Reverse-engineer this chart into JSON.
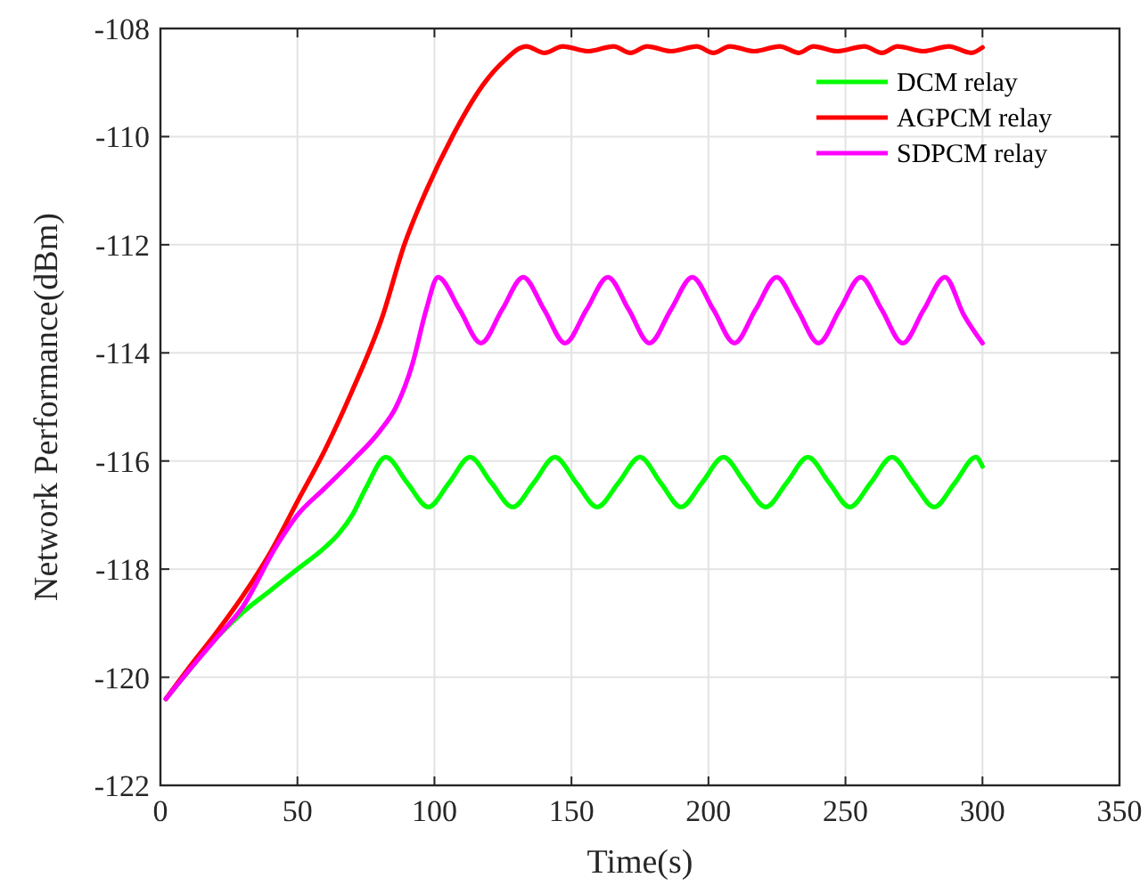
{
  "chart_data": {
    "type": "line",
    "xlabel": "Time(s)",
    "ylabel": "Network Performance(dBm)",
    "xlim": [
      0,
      350
    ],
    "xticks": [
      0,
      50,
      100,
      150,
      200,
      250,
      300,
      350
    ],
    "ylim": [
      -122,
      -108
    ],
    "yticks": [
      -122,
      -120,
      -118,
      -116,
      -114,
      -112,
      -110,
      -108
    ],
    "grid": true,
    "legend": "top right",
    "line_style": "solid",
    "marker": "none",
    "series": [
      {
        "name": "DCM relay",
        "color": "#00ff00",
        "x": [
          2,
          10,
          20,
          30,
          40,
          50,
          60,
          65,
          70,
          75,
          82.3,
          90,
          97.8,
          105.4,
          113,
          120.7,
          128.6,
          136.3,
          144,
          151.7,
          159.4,
          167.2,
          175,
          182.5,
          190,
          197.7,
          205.5,
          213.2,
          220.9,
          228.6,
          236.3,
          244,
          251.6,
          259.3,
          267,
          274.7,
          282.4,
          290,
          297.6,
          300
        ],
        "values": [
          -120.4,
          -119.9,
          -119.3,
          -118.8,
          -118.4,
          -118.0,
          -117.6,
          -117.35,
          -117.0,
          -116.5,
          -115.93,
          -116.4,
          -116.85,
          -116.4,
          -115.93,
          -116.4,
          -116.85,
          -116.4,
          -115.93,
          -116.4,
          -116.85,
          -116.4,
          -115.93,
          -116.4,
          -116.85,
          -116.4,
          -115.93,
          -116.4,
          -116.85,
          -116.4,
          -115.93,
          -116.4,
          -116.85,
          -116.4,
          -115.93,
          -116.4,
          -116.85,
          -116.4,
          -115.93,
          -116.1
        ]
      },
      {
        "name": "AGPCM relay",
        "color": "#ff0000",
        "x": [
          2,
          10,
          20,
          30,
          40,
          50,
          60,
          70,
          81,
          89,
          97,
          106.5,
          118.8,
          125.4,
          133.5,
          140.2,
          146.8,
          156.1,
          165.4,
          171.5,
          177.6,
          186.4,
          195.7,
          201.8,
          207.8,
          216.7,
          226,
          233,
          238.3,
          247,
          256.9,
          263.3,
          269,
          278.4,
          287.7,
          295.9,
          300
        ],
        "values": [
          -120.4,
          -119.85,
          -119.2,
          -118.5,
          -117.7,
          -116.75,
          -115.8,
          -114.7,
          -113.33,
          -112,
          -111,
          -110,
          -108.97,
          -108.6,
          -108.33,
          -108.45,
          -108.33,
          -108.42,
          -108.33,
          -108.45,
          -108.33,
          -108.42,
          -108.33,
          -108.45,
          -108.33,
          -108.42,
          -108.33,
          -108.45,
          -108.33,
          -108.42,
          -108.33,
          -108.45,
          -108.33,
          -108.42,
          -108.33,
          -108.45,
          -108.35
        ]
      },
      {
        "name": "SDPCM relay",
        "color": "#ff00ff",
        "x": [
          2,
          10,
          20,
          30,
          42,
          50,
          60,
          70,
          80,
          86,
          92,
          97,
          101.3,
          109.2,
          117,
          124.7,
          132.4,
          140,
          147.7,
          155.5,
          163.3,
          170.9,
          178.5,
          186.3,
          194.1,
          201.8,
          209.5,
          217.2,
          224.9,
          232.5,
          240.2,
          247.9,
          255.6,
          263.2,
          270.9,
          278.6,
          286.3,
          293.2,
          300
        ],
        "values": [
          -120.4,
          -119.9,
          -119.3,
          -118.7,
          -117.6,
          -117.0,
          -116.5,
          -116.0,
          -115.45,
          -115.0,
          -114.2,
          -113.2,
          -112.6,
          -113.2,
          -113.82,
          -113.2,
          -112.6,
          -113.2,
          -113.82,
          -113.2,
          -112.6,
          -113.2,
          -113.82,
          -113.2,
          -112.6,
          -113.2,
          -113.82,
          -113.2,
          -112.6,
          -113.2,
          -113.82,
          -113.2,
          -112.6,
          -113.2,
          -113.82,
          -113.2,
          -112.6,
          -113.3,
          -113.82
        ]
      }
    ]
  }
}
